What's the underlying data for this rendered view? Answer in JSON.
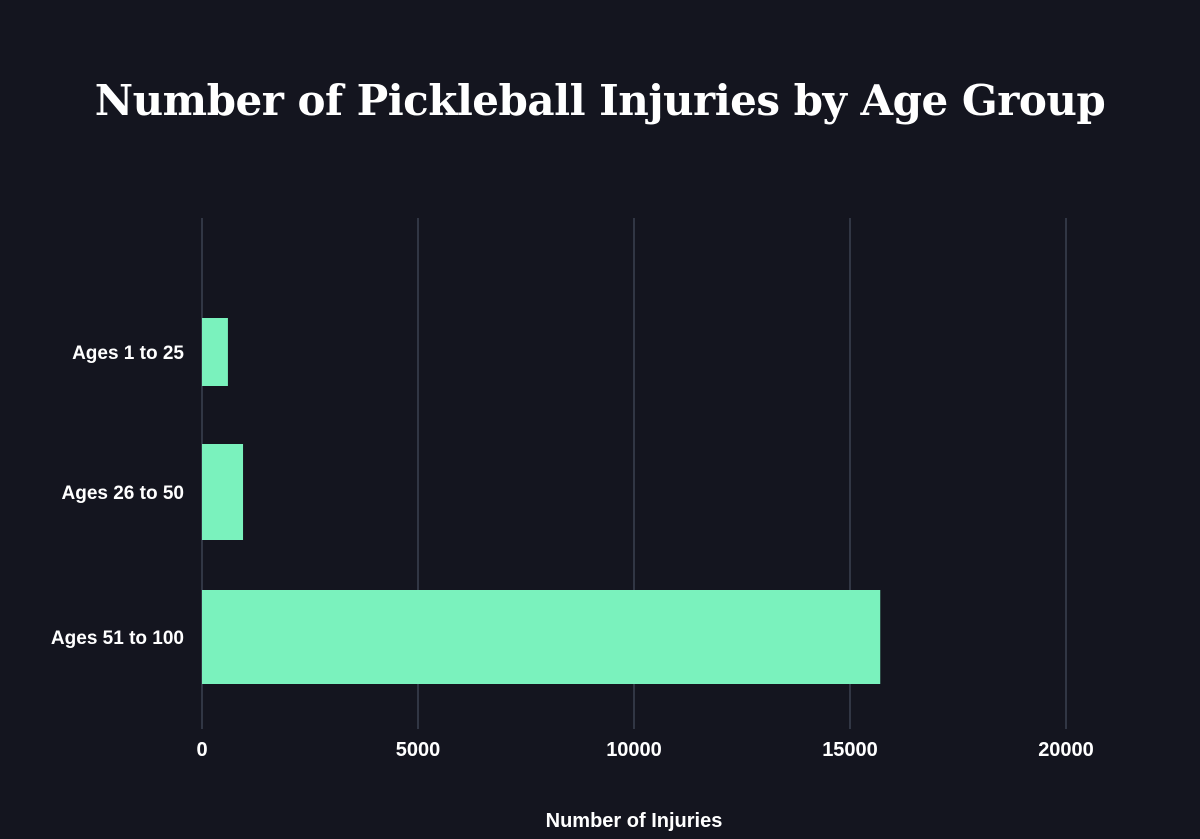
{
  "chart_data": {
    "type": "bar",
    "orientation": "horizontal",
    "title": "Number of Pickleball Injuries by Age Group",
    "xlabel": "Number of Injuries",
    "ylabel": "",
    "categories": [
      "Ages 1 to 25",
      "Ages 26 to 50",
      "Ages 51 to 100"
    ],
    "values": [
      600,
      950,
      15700
    ],
    "xlim": [
      0,
      20000
    ],
    "xticks": [
      0,
      5000,
      10000,
      15000,
      20000
    ],
    "grid": true,
    "colors": {
      "background": "#14151f",
      "bar": "#7af2bd",
      "grid": "#3b4150",
      "text": "#ffffff"
    }
  }
}
